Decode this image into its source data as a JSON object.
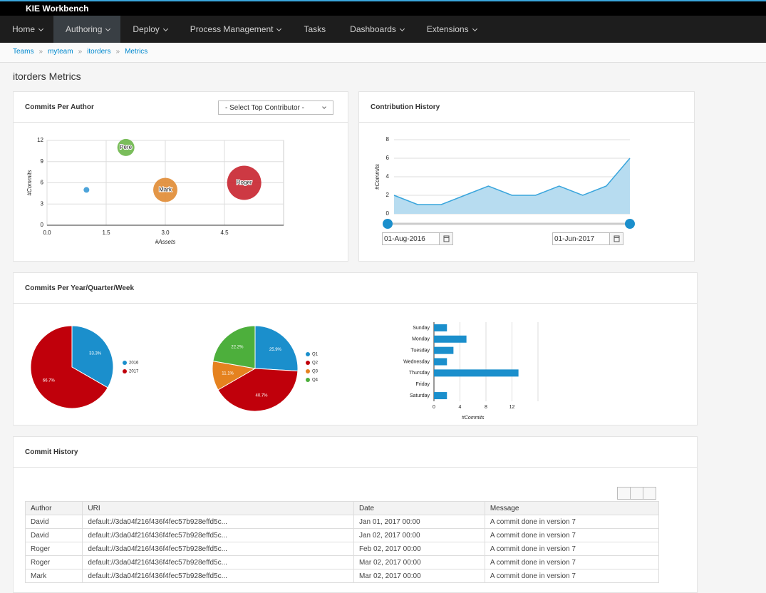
{
  "header": {
    "title": "KIE Workbench"
  },
  "nav": {
    "items": [
      "Home",
      "Authoring",
      "Deploy",
      "Process Management",
      "Tasks",
      "Dashboards",
      "Extensions"
    ],
    "active": 1
  },
  "breadcrumb": {
    "items": [
      "Teams",
      "myteam",
      "itorders",
      "Metrics"
    ],
    "separator": "»"
  },
  "page_title": "itorders Metrics",
  "panels": {
    "commits_per_author": {
      "title": "Commits Per Author",
      "select": "- Select Top Contributor -"
    },
    "contribution_history": {
      "title": "Contribution History",
      "from": "01-Aug-2016",
      "to": "01-Jun-2017"
    },
    "commits_per_period": {
      "title": "Commits Per Year/Quarter/Week"
    },
    "commit_history": {
      "title": "Commit History"
    }
  },
  "chart_data": [
    {
      "type": "bubble",
      "xlabel": "#Assets",
      "ylabel": "#Commits",
      "xlim": [
        0,
        6
      ],
      "ylim": [
        0,
        12
      ],
      "xticks": [
        {
          "value": 0,
          "label": "0.0"
        },
        1.5,
        {
          "value": 3,
          "label": "3.0"
        },
        4.5
      ],
      "yticks": [
        0,
        3,
        6,
        9,
        12
      ],
      "grid": true,
      "points": [
        {
          "name": null,
          "x": 1,
          "y": 5,
          "size": 1,
          "color": "#3a9ad6"
        },
        {
          "name": "Pere",
          "x": 2,
          "y": 11,
          "size": 9,
          "color": "#6cb649"
        },
        {
          "name": "Mark",
          "x": 3,
          "y": 5,
          "size": 18,
          "color": "#e08b33"
        },
        {
          "name": "Roger",
          "x": 5,
          "y": 6,
          "size": 36,
          "color": "#c8232f"
        }
      ]
    },
    {
      "type": "area",
      "ylabel": "#Commits",
      "ylim": [
        0,
        8
      ],
      "yticks": [
        0,
        2,
        4,
        6,
        8
      ],
      "grid": true,
      "values": [
        2,
        1,
        1,
        2,
        3,
        2,
        2,
        3,
        2,
        3,
        6
      ],
      "color": "#39a5dc",
      "fill": "#b7dcf0"
    },
    {
      "type": "pie",
      "categories": [
        "2016",
        "2017"
      ],
      "values": [
        33.3,
        66.7
      ],
      "value_labels": [
        "33.3%",
        "66.7%"
      ],
      "colors": [
        "#1b8fcc",
        "#c0000b"
      ]
    },
    {
      "type": "pie",
      "categories": [
        "Q1",
        "Q2",
        "Q3",
        "Q4"
      ],
      "values": [
        25.9,
        40.7,
        11.1,
        22.2
      ],
      "value_labels": [
        "25.9%",
        "40.7%",
        "11.1%",
        "22.2%"
      ],
      "colors": [
        "#1b8fcc",
        "#c0000b",
        "#e5821f",
        "#4daf3c"
      ]
    },
    {
      "type": "hbar",
      "categories": [
        "Sunday",
        "Monday",
        "Tuesday",
        "Wednesday",
        "Thursday",
        "Friday",
        "Saturday"
      ],
      "values": [
        2,
        5,
        3,
        2,
        13,
        0,
        2
      ],
      "xlabel": "#Commits",
      "xlim": [
        0,
        16
      ],
      "xticks": [
        0,
        4,
        8,
        12
      ],
      "grid": true,
      "color": "#1b8fcc"
    }
  ],
  "table": {
    "columns": [
      "Author",
      "URI",
      "Date",
      "Message"
    ],
    "rows": [
      [
        "David",
        "default://3da04f216f436f4fec57b928effd5c...",
        "Jan 01, 2017 00:00",
        "A commit done in version 7"
      ],
      [
        "David",
        "default://3da04f216f436f4fec57b928effd5c...",
        "Jan 02, 2017 00:00",
        "A commit done in version 7"
      ],
      [
        "Roger",
        "default://3da04f216f436f4fec57b928effd5c...",
        "Feb 02, 2017 00:00",
        "A commit done in version 7"
      ],
      [
        "Roger",
        "default://3da04f216f436f4fec57b928effd5c...",
        "Mar 02, 2017 00:00",
        "A commit done in version 7"
      ],
      [
        "Mark",
        "default://3da04f216f436f4fec57b928effd5c...",
        "Mar 02, 2017 00:00",
        "A commit done in version 7"
      ]
    ]
  }
}
